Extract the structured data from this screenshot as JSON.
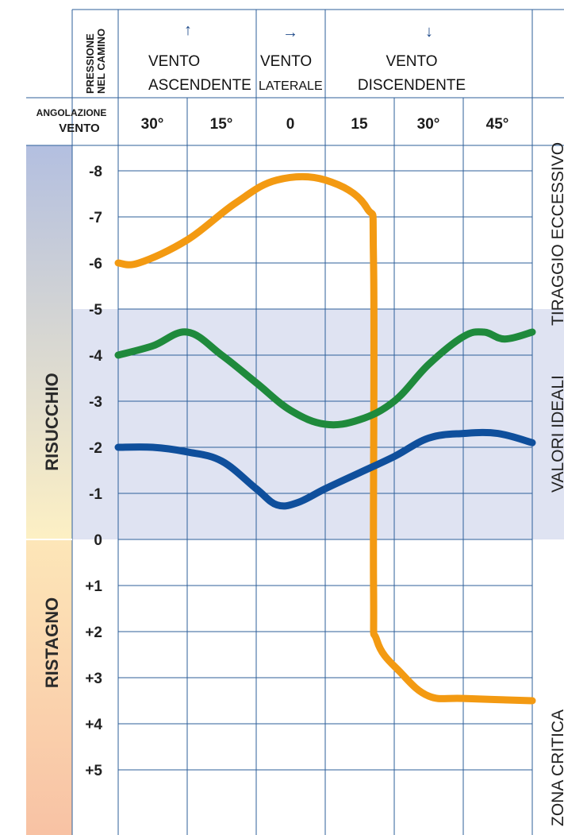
{
  "header": {
    "pressure_label_line1": "PRESSIONE",
    "pressure_label_line2": "NEL CAMINO",
    "angle_label_line1": "ANGOLAZIONE",
    "angle_label_line2": "VENTO",
    "groups": [
      {
        "arrow": "↑",
        "line1": "VENTO",
        "line2": "ASCENDENTE"
      },
      {
        "arrow": "→",
        "line1": "VENTO",
        "line2": "LATERALE"
      },
      {
        "arrow": "↓",
        "line1": "VENTO",
        "line2": "DISCENDENTE"
      }
    ],
    "angles": [
      "30°",
      "15°",
      "0",
      "15",
      "30°",
      "45°"
    ]
  },
  "bands": {
    "suction": "RISUCCHIO",
    "stagnation": "RISTAGNO"
  },
  "zones": {
    "excessive": "TIRAGGIO ECCESSIVO",
    "ideal": "VALORI IDEALI",
    "critical": "ZONA CRITICA"
  },
  "colors": {
    "orange": "#f39a12",
    "green": "#1f8a3c",
    "blue": "#0f4f9c",
    "grid": "#2d5f9a",
    "ideal_band": "#dfe3f2",
    "suction_top": "#b3bfe0",
    "suction_bottom": "#fdf0c4",
    "stagnation_top": "#fde6b8",
    "stagnation_bottom": "#f8c2a4"
  },
  "chart_data": {
    "type": "line",
    "xlabel": "ANGOLAZIONE VENTO",
    "ylabel": "PRESSIONE NEL CAMINO",
    "x_tick_labels": [
      "30°",
      "15°",
      "0",
      "15",
      "30°",
      "45°"
    ],
    "y_ticks": [
      "-8",
      "-7",
      "-6",
      "-5",
      "-4",
      "-3",
      "-2",
      "-1",
      "0",
      "+1",
      "+2",
      "+3",
      "+4",
      "+5"
    ],
    "ylim": [
      -9,
      6
    ],
    "ideal_range": [
      -5,
      0
    ],
    "series": [
      {
        "color": "orange",
        "points": [
          [
            0,
            -6.0
          ],
          [
            0.3,
            -6.0
          ],
          [
            1,
            -6.5
          ],
          [
            1.7,
            -7.3
          ],
          [
            2.3,
            -7.8
          ],
          [
            3.0,
            -7.8
          ],
          [
            3.6,
            -7.2
          ],
          [
            3.7,
            -6.0
          ],
          [
            3.7,
            1.0
          ],
          [
            3.75,
            2.2
          ],
          [
            4.1,
            2.9
          ],
          [
            4.5,
            3.4
          ],
          [
            5.0,
            3.45
          ],
          [
            6.0,
            3.5
          ]
        ]
      },
      {
        "color": "green",
        "points": [
          [
            0,
            -4.0
          ],
          [
            0.5,
            -4.2
          ],
          [
            1,
            -4.5
          ],
          [
            1.5,
            -4.0
          ],
          [
            2,
            -3.4
          ],
          [
            2.5,
            -2.8
          ],
          [
            3,
            -2.5
          ],
          [
            3.5,
            -2.6
          ],
          [
            4,
            -3.0
          ],
          [
            4.5,
            -3.8
          ],
          [
            5.0,
            -4.4
          ],
          [
            5.3,
            -4.5
          ],
          [
            5.6,
            -4.35
          ],
          [
            6,
            -4.5
          ]
        ]
      },
      {
        "color": "blue",
        "points": [
          [
            0,
            -2.0
          ],
          [
            0.5,
            -2.0
          ],
          [
            1,
            -1.9
          ],
          [
            1.5,
            -1.7
          ],
          [
            2,
            -1.1
          ],
          [
            2.3,
            -0.75
          ],
          [
            2.6,
            -0.8
          ],
          [
            3,
            -1.1
          ],
          [
            3.5,
            -1.45
          ],
          [
            4,
            -1.8
          ],
          [
            4.5,
            -2.2
          ],
          [
            5,
            -2.3
          ],
          [
            5.5,
            -2.3
          ],
          [
            6,
            -2.1
          ]
        ]
      }
    ]
  }
}
